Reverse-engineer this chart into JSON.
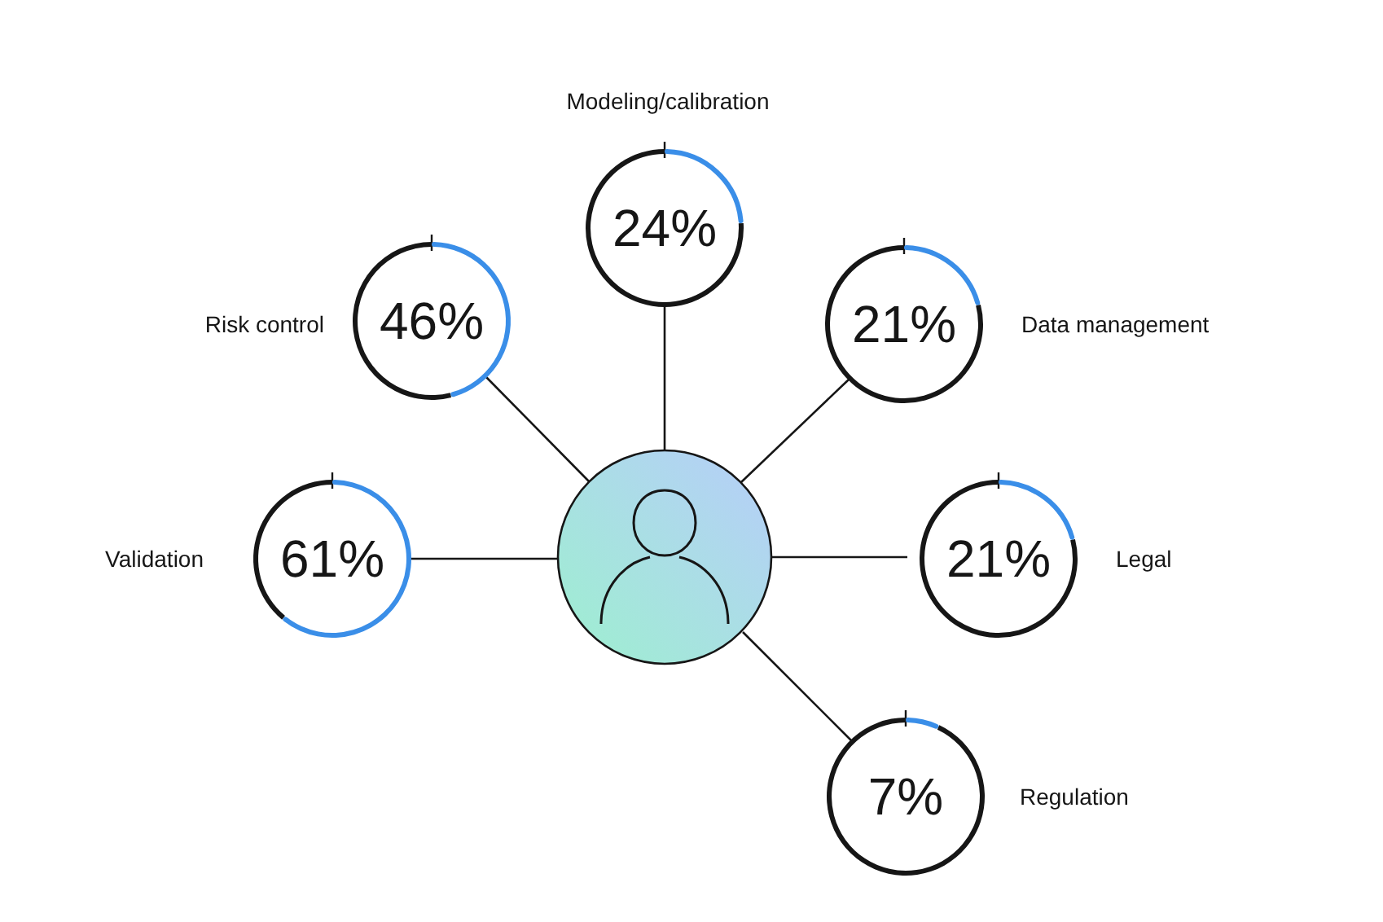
{
  "chart_data": [
    {
      "type": "donut",
      "title": "Modeling/calibration",
      "categories": [
        null,
        null
      ],
      "values": [
        24,
        76
      ],
      "colors": [
        "#3a8ee8",
        "#161616"
      ],
      "value_labels": [
        "24%",
        null
      ]
    },
    {
      "type": "donut",
      "title": "Risk control",
      "categories": [
        null,
        null
      ],
      "values": [
        46,
        54
      ],
      "colors": [
        "#3a8ee8",
        "#161616"
      ],
      "value_labels": [
        "46%",
        null
      ]
    },
    {
      "type": "donut",
      "title": "Data management",
      "categories": [
        null,
        null
      ],
      "values": [
        21,
        79
      ],
      "colors": [
        "#3a8ee8",
        "#161616"
      ],
      "value_labels": [
        "21%",
        null
      ]
    },
    {
      "type": "donut",
      "title": "Validation",
      "categories": [
        null,
        null
      ],
      "values": [
        61,
        39
      ],
      "colors": [
        "#3a8ee8",
        "#161616"
      ],
      "value_labels": [
        "61%",
        null
      ]
    },
    {
      "type": "donut",
      "title": "Legal",
      "categories": [
        null,
        null
      ],
      "values": [
        21,
        79
      ],
      "colors": [
        "#3a8ee8",
        "#161616"
      ],
      "value_labels": [
        "21%",
        null
      ]
    },
    {
      "type": "donut",
      "title": "Regulation",
      "categories": [
        null,
        null
      ],
      "values": [
        7,
        93
      ],
      "colors": [
        "#3a8ee8",
        "#161616"
      ],
      "value_labels": [
        "7%",
        null
      ]
    }
  ]
}
